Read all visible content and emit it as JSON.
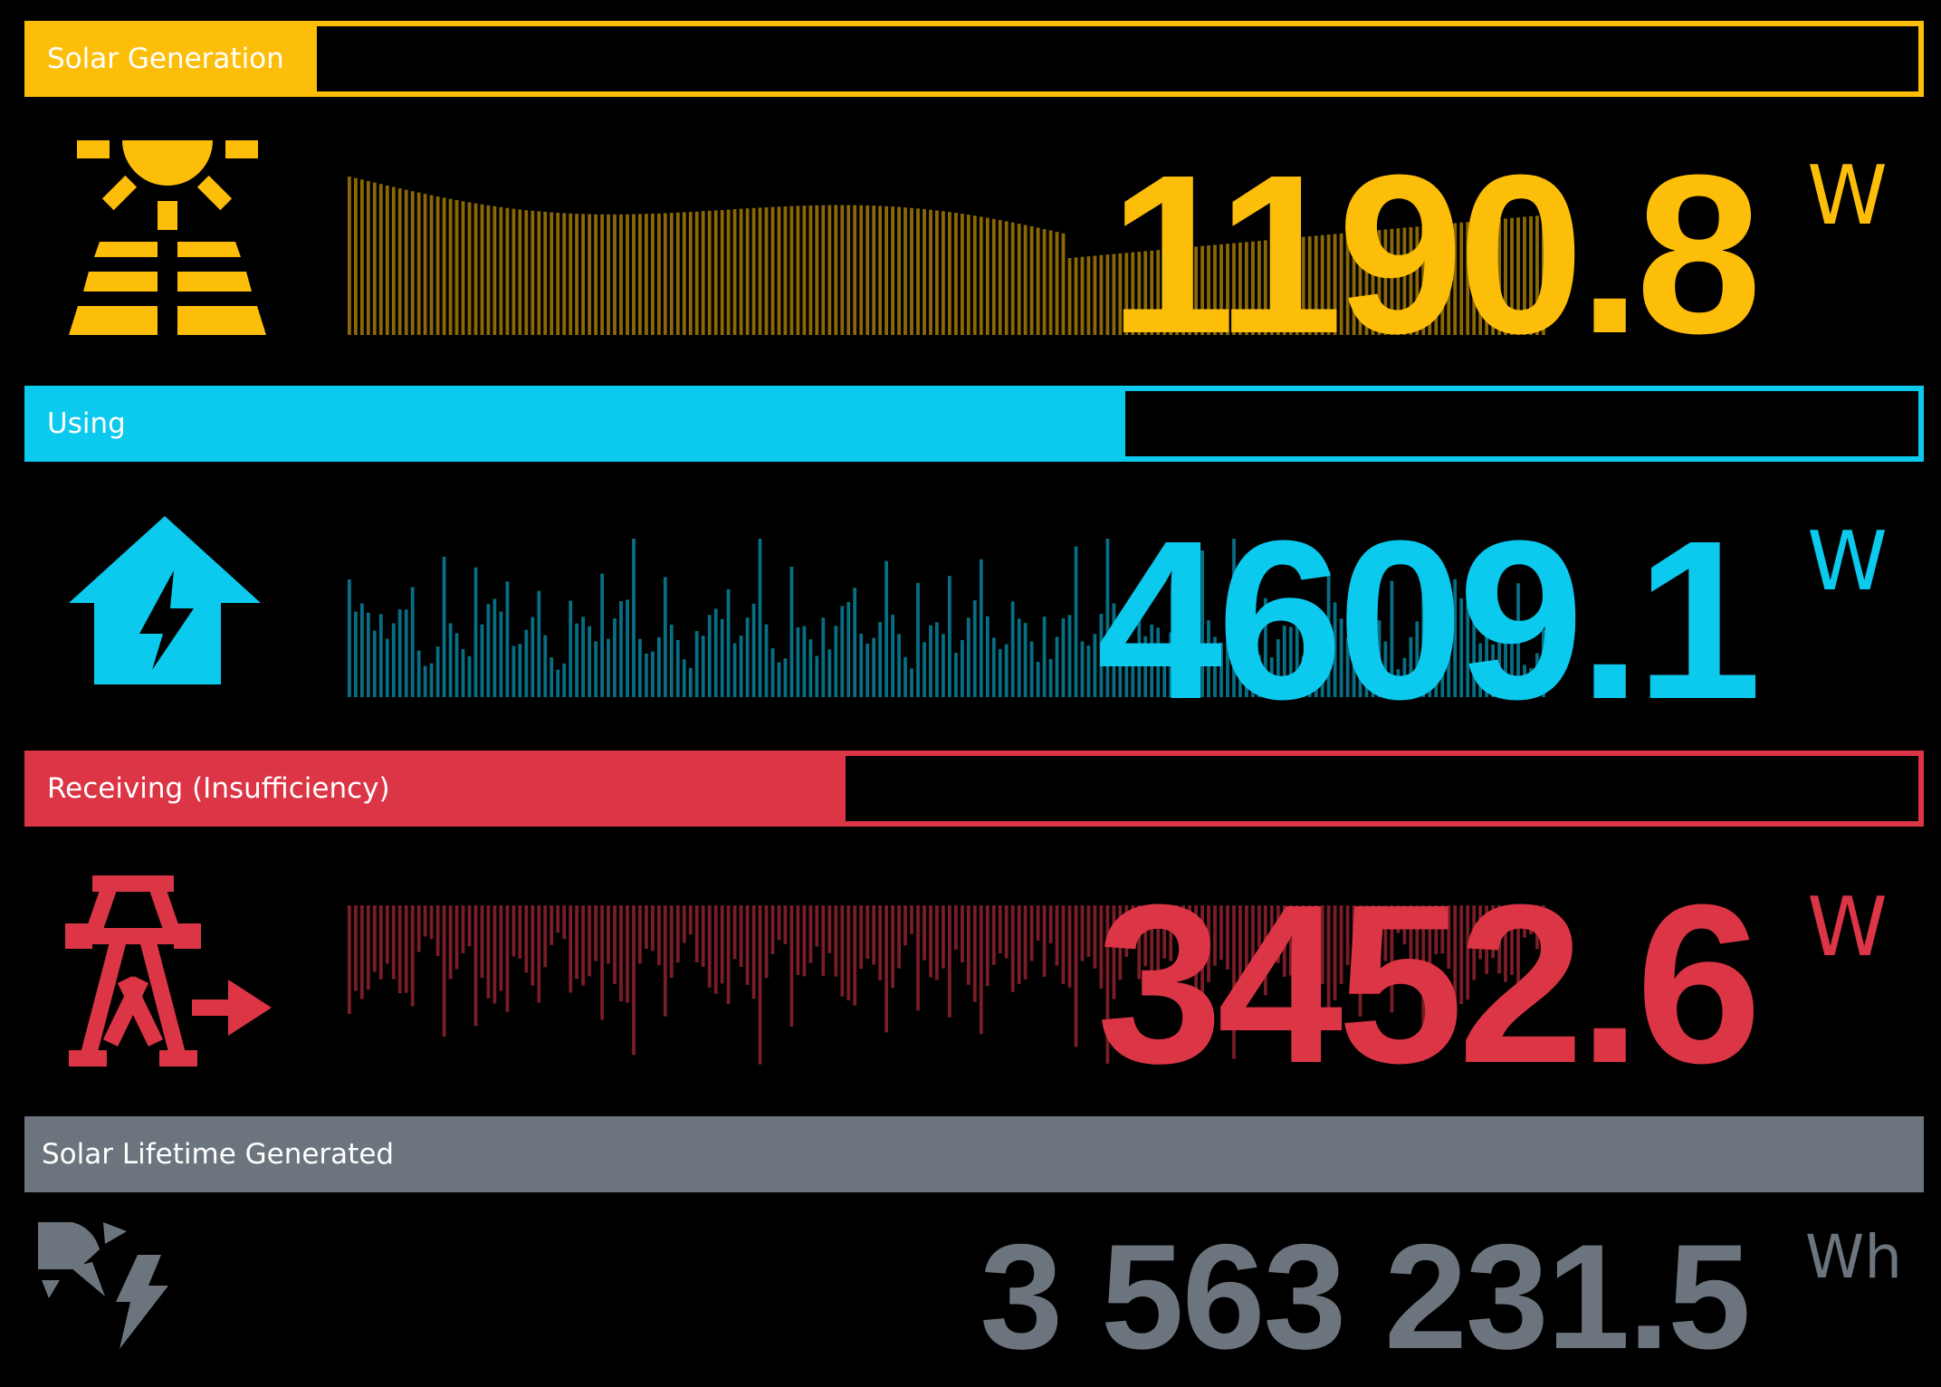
{
  "colors": {
    "solar": "#FDBE09",
    "using": "#0CC9EE",
    "grid": "#DC3545",
    "lifetime": "#6C757D"
  },
  "solar": {
    "label": "Solar Generation",
    "value": "1190.8",
    "unit": "W",
    "level": 0.152,
    "icon": "solar-panel-icon"
  },
  "using": {
    "label": "Using",
    "value": "4609.1",
    "unit": "W",
    "level": 0.58,
    "icon": "house-bolt-icon"
  },
  "receiving": {
    "label": "Receiving (Insufficiency)",
    "value": "3452.6",
    "unit": "W",
    "level": 0.432,
    "icon": "power-tower-arrow-icon"
  },
  "lifetime": {
    "label": "Solar Lifetime Generated",
    "value": "3 563 231.5",
    "unit": "Wh",
    "icon": "solar-bolt-icon"
  }
}
